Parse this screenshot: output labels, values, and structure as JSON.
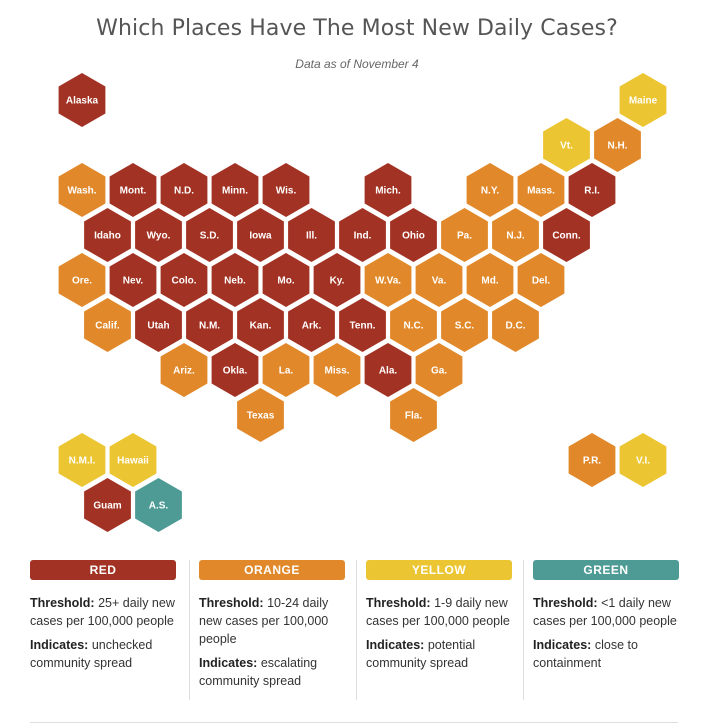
{
  "title": "Which Places Have The Most New Daily Cases?",
  "subtitle": "Data as of November 4",
  "colors": {
    "red": "#a23223",
    "orange": "#e1892a",
    "yellow": "#ecc533",
    "green": "#4e9b96"
  },
  "hexes": [
    {
      "name": "Alaska",
      "level": "red",
      "col": 0,
      "row": 0
    },
    {
      "name": "Maine",
      "level": "yellow",
      "col": 11,
      "row": 0
    },
    {
      "name": "Vt.",
      "level": "yellow",
      "col": 9,
      "row": 1
    },
    {
      "name": "N.H.",
      "level": "orange",
      "col": 10,
      "row": 1
    },
    {
      "name": "Wash.",
      "level": "orange",
      "col": 0,
      "row": 2
    },
    {
      "name": "Mont.",
      "level": "red",
      "col": 1,
      "row": 2
    },
    {
      "name": "N.D.",
      "level": "red",
      "col": 2,
      "row": 2
    },
    {
      "name": "Minn.",
      "level": "red",
      "col": 3,
      "row": 2
    },
    {
      "name": "Wis.",
      "level": "red",
      "col": 4,
      "row": 2
    },
    {
      "name": "Mich.",
      "level": "red",
      "col": 6,
      "row": 2
    },
    {
      "name": "N.Y.",
      "level": "orange",
      "col": 8,
      "row": 2
    },
    {
      "name": "Mass.",
      "level": "orange",
      "col": 9,
      "row": 2
    },
    {
      "name": "R.I.",
      "level": "red",
      "col": 10,
      "row": 2
    },
    {
      "name": "Idaho",
      "level": "red",
      "col": 0,
      "row": 3
    },
    {
      "name": "Wyo.",
      "level": "red",
      "col": 1,
      "row": 3
    },
    {
      "name": "S.D.",
      "level": "red",
      "col": 2,
      "row": 3
    },
    {
      "name": "Iowa",
      "level": "red",
      "col": 3,
      "row": 3
    },
    {
      "name": "Ill.",
      "level": "red",
      "col": 4,
      "row": 3
    },
    {
      "name": "Ind.",
      "level": "red",
      "col": 5,
      "row": 3
    },
    {
      "name": "Ohio",
      "level": "red",
      "col": 6,
      "row": 3
    },
    {
      "name": "Pa.",
      "level": "orange",
      "col": 7,
      "row": 3
    },
    {
      "name": "N.J.",
      "level": "orange",
      "col": 8,
      "row": 3
    },
    {
      "name": "Conn.",
      "level": "red",
      "col": 9,
      "row": 3
    },
    {
      "name": "Ore.",
      "level": "orange",
      "col": 0,
      "row": 4
    },
    {
      "name": "Nev.",
      "level": "red",
      "col": 1,
      "row": 4
    },
    {
      "name": "Colo.",
      "level": "red",
      "col": 2,
      "row": 4
    },
    {
      "name": "Neb.",
      "level": "red",
      "col": 3,
      "row": 4
    },
    {
      "name": "Mo.",
      "level": "red",
      "col": 4,
      "row": 4
    },
    {
      "name": "Ky.",
      "level": "red",
      "col": 5,
      "row": 4
    },
    {
      "name": "W.Va.",
      "level": "orange",
      "col": 6,
      "row": 4
    },
    {
      "name": "Va.",
      "level": "orange",
      "col": 7,
      "row": 4
    },
    {
      "name": "Md.",
      "level": "orange",
      "col": 8,
      "row": 4
    },
    {
      "name": "Del.",
      "level": "orange",
      "col": 9,
      "row": 4
    },
    {
      "name": "Calif.",
      "level": "orange",
      "col": 0,
      "row": 5
    },
    {
      "name": "Utah",
      "level": "red",
      "col": 1,
      "row": 5
    },
    {
      "name": "N.M.",
      "level": "red",
      "col": 2,
      "row": 5
    },
    {
      "name": "Kan.",
      "level": "red",
      "col": 3,
      "row": 5
    },
    {
      "name": "Ark.",
      "level": "red",
      "col": 4,
      "row": 5
    },
    {
      "name": "Tenn.",
      "level": "red",
      "col": 5,
      "row": 5
    },
    {
      "name": "N.C.",
      "level": "orange",
      "col": 6,
      "row": 5
    },
    {
      "name": "S.C.",
      "level": "orange",
      "col": 7,
      "row": 5
    },
    {
      "name": "D.C.",
      "level": "orange",
      "col": 8,
      "row": 5
    },
    {
      "name": "Ariz.",
      "level": "orange",
      "col": 2,
      "row": 6
    },
    {
      "name": "Okla.",
      "level": "red",
      "col": 3,
      "row": 6
    },
    {
      "name": "La.",
      "level": "orange",
      "col": 4,
      "row": 6
    },
    {
      "name": "Miss.",
      "level": "orange",
      "col": 5,
      "row": 6
    },
    {
      "name": "Ala.",
      "level": "red",
      "col": 6,
      "row": 6
    },
    {
      "name": "Ga.",
      "level": "orange",
      "col": 7,
      "row": 6
    },
    {
      "name": "Texas",
      "level": "orange",
      "col": 3,
      "row": 7
    },
    {
      "name": "Fla.",
      "level": "orange",
      "col": 6,
      "row": 7
    },
    {
      "name": "N.M.I.",
      "level": "yellow",
      "col": 0,
      "row": 8
    },
    {
      "name": "Hawaii",
      "level": "yellow",
      "col": 1,
      "row": 8
    },
    {
      "name": "P.R.",
      "level": "orange",
      "col": 10,
      "row": 8
    },
    {
      "name": "V.I.",
      "level": "yellow",
      "col": 11,
      "row": 8
    },
    {
      "name": "Guam",
      "level": "red",
      "col": 0,
      "row": 9
    },
    {
      "name": "A.S.",
      "level": "green",
      "col": 1,
      "row": 9
    }
  ],
  "legend": [
    {
      "level": "red",
      "label": "RED",
      "threshold_label": "Threshold:",
      "threshold": "25+ daily new cases per 100,000 people",
      "indicates_label": "Indicates:",
      "indicates": "unchecked community spread"
    },
    {
      "level": "orange",
      "label": "ORANGE",
      "threshold_label": "Threshold:",
      "threshold": "10-24 daily new cases per 100,000 people",
      "indicates_label": "Indicates:",
      "indicates": "escalating community spread"
    },
    {
      "level": "yellow",
      "label": "YELLOW",
      "threshold_label": "Threshold:",
      "threshold": "1-9 daily new cases per 100,000 people",
      "indicates_label": "Indicates:",
      "indicates": "potential community spread"
    },
    {
      "level": "green",
      "label": "GREEN",
      "threshold_label": "Threshold:",
      "threshold": "<1 daily new cases per 100,000 people",
      "indicates_label": "Indicates:",
      "indicates": "close to containment"
    }
  ]
}
